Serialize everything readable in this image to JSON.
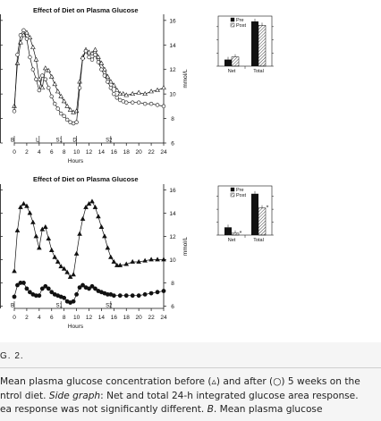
{
  "chart_data": [
    {
      "panel": "A",
      "type": "line",
      "title": "Effect of Diet on Plasma Glucose",
      "xlabel": "Hours",
      "ylabel": "mmol/L",
      "xticks": [
        0,
        2,
        4,
        6,
        8,
        10,
        12,
        14,
        16,
        18,
        20,
        22,
        24
      ],
      "yticks": [
        6,
        8,
        10,
        12,
        14,
        16
      ],
      "xlim": [
        0,
        24
      ],
      "ylim": [
        6,
        16.5
      ],
      "markers": [
        "B",
        "L",
        "S1",
        "D",
        "S2"
      ],
      "series": [
        {
          "marker": "triangle",
          "points": [
            [
              0,
              9
            ],
            [
              0.5,
              12.5
            ],
            [
              1,
              14.2
            ],
            [
              1.5,
              14.8
            ],
            [
              2,
              15
            ],
            [
              2.5,
              14.6
            ],
            [
              3,
              13.8
            ],
            [
              3.5,
              12.8
            ],
            [
              4,
              11.2
            ],
            [
              4.5,
              10.5
            ],
            [
              5,
              12.1
            ],
            [
              5.5,
              11.9
            ],
            [
              6,
              11.4
            ],
            [
              6.5,
              10.8
            ],
            [
              7,
              10.2
            ],
            [
              7.5,
              9.8
            ],
            [
              8,
              9.4
            ],
            [
              8.5,
              9.0
            ],
            [
              9,
              8.7
            ],
            [
              9.5,
              8.5
            ],
            [
              10,
              8.6
            ],
            [
              10.5,
              11.0
            ],
            [
              11,
              13.0
            ],
            [
              11.5,
              13.6
            ],
            [
              12,
              13.4
            ],
            [
              12.5,
              13.3
            ],
            [
              13,
              13.6
            ],
            [
              13.5,
              13.0
            ],
            [
              14,
              12.5
            ],
            [
              14.5,
              12.0
            ],
            [
              15,
              11.4
            ],
            [
              15.5,
              11.0
            ],
            [
              16,
              10.7
            ],
            [
              16.5,
              10.3
            ],
            [
              17,
              10.0
            ],
            [
              17.5,
              10.0
            ],
            [
              18,
              9.9
            ],
            [
              19,
              10.0
            ],
            [
              20,
              10.1
            ],
            [
              21,
              10.0
            ],
            [
              22,
              10.2
            ],
            [
              23,
              10.3
            ],
            [
              24,
              10.5
            ]
          ]
        },
        {
          "marker": "circle",
          "points": [
            [
              0,
              8.6
            ],
            [
              0.5,
              13.2
            ],
            [
              1,
              14.8
            ],
            [
              1.5,
              15.2
            ],
            [
              2,
              14.5
            ],
            [
              2.5,
              13.0
            ],
            [
              3,
              12.0
            ],
            [
              3.5,
              11.2
            ],
            [
              4,
              10.3
            ],
            [
              4.5,
              11.5
            ],
            [
              5,
              11.2
            ],
            [
              5.5,
              10.5
            ],
            [
              6,
              9.8
            ],
            [
              6.5,
              9.2
            ],
            [
              7,
              8.8
            ],
            [
              7.5,
              8.4
            ],
            [
              8,
              8.2
            ],
            [
              8.5,
              7.9
            ],
            [
              9,
              7.7
            ],
            [
              9.5,
              7.6
            ],
            [
              10,
              7.7
            ],
            [
              10.5,
              10.5
            ],
            [
              11,
              12.9
            ],
            [
              11.5,
              13.5
            ],
            [
              12,
              13.0
            ],
            [
              12.5,
              12.8
            ],
            [
              13,
              13.2
            ],
            [
              13.5,
              12.6
            ],
            [
              14,
              12.0
            ],
            [
              14.5,
              11.5
            ],
            [
              15,
              11.0
            ],
            [
              15.5,
              10.5
            ],
            [
              16,
              10.0
            ],
            [
              16.5,
              9.7
            ],
            [
              17,
              9.5
            ],
            [
              17.5,
              9.4
            ],
            [
              18,
              9.3
            ],
            [
              19,
              9.3
            ],
            [
              20,
              9.3
            ],
            [
              21,
              9.2
            ],
            [
              22,
              9.2
            ],
            [
              23,
              9.1
            ],
            [
              24,
              9.0
            ]
          ]
        }
      ],
      "inset": {
        "type": "bar",
        "categories": [
          "Net",
          "Total"
        ],
        "legend": [
          "Pre",
          "Post"
        ],
        "values": {
          "pre": [
            0.5,
            3.4
          ],
          "post": [
            0.7,
            3.1
          ]
        }
      }
    },
    {
      "panel": "B",
      "type": "line",
      "title": "Effect of Diet on Plasma Glucose",
      "xlabel": "Hours",
      "ylabel": "mmol/L",
      "xticks": [
        0,
        2,
        4,
        6,
        8,
        10,
        12,
        14,
        16,
        18,
        20,
        22,
        24
      ],
      "yticks": [
        6,
        8,
        10,
        12,
        14,
        16
      ],
      "xlim": [
        0,
        24
      ],
      "ylim": [
        5.8,
        16.5
      ],
      "markers": [
        "B",
        "S1",
        "S2"
      ],
      "series": [
        {
          "marker": "triangle-filled",
          "points": [
            [
              0,
              9
            ],
            [
              0.5,
              12.5
            ],
            [
              1,
              14.5
            ],
            [
              1.5,
              14.8
            ],
            [
              2,
              14.6
            ],
            [
              2.5,
              14.0
            ],
            [
              3,
              13.2
            ],
            [
              3.5,
              12.0
            ],
            [
              4,
              11.0
            ],
            [
              4.5,
              12.6
            ],
            [
              5,
              12.8
            ],
            [
              5.5,
              11.8
            ],
            [
              6,
              10.8
            ],
            [
              6.5,
              10.2
            ],
            [
              7,
              9.8
            ],
            [
              7.5,
              9.4
            ],
            [
              8,
              9.2
            ],
            [
              8.5,
              8.9
            ],
            [
              9,
              8.5
            ],
            [
              9.5,
              8.7
            ],
            [
              10,
              10.5
            ],
            [
              10.5,
              12.2
            ],
            [
              11,
              13.5
            ],
            [
              11.5,
              14.5
            ],
            [
              12,
              14.8
            ],
            [
              12.5,
              15.0
            ],
            [
              13,
              14.5
            ],
            [
              13.5,
              13.7
            ],
            [
              14,
              12.8
            ],
            [
              14.5,
              12.0
            ],
            [
              15,
              11.0
            ],
            [
              15.5,
              10.2
            ],
            [
              16,
              9.8
            ],
            [
              16.5,
              9.5
            ],
            [
              17,
              9.5
            ],
            [
              18,
              9.6
            ],
            [
              19,
              9.8
            ],
            [
              20,
              9.8
            ],
            [
              21,
              9.9
            ],
            [
              22,
              10.0
            ],
            [
              23,
              10.0
            ],
            [
              24,
              10.0
            ]
          ]
        },
        {
          "marker": "circle-filled",
          "points": [
            [
              0,
              6.8
            ],
            [
              0.5,
              7.8
            ],
            [
              1,
              8.0
            ],
            [
              1.5,
              8.0
            ],
            [
              2,
              7.5
            ],
            [
              2.5,
              7.2
            ],
            [
              3,
              7.0
            ],
            [
              3.5,
              6.9
            ],
            [
              4,
              6.9
            ],
            [
              4.5,
              7.5
            ],
            [
              5,
              7.7
            ],
            [
              5.5,
              7.5
            ],
            [
              6,
              7.2
            ],
            [
              6.5,
              7.0
            ],
            [
              7,
              6.9
            ],
            [
              7.5,
              6.8
            ],
            [
              8,
              6.7
            ],
            [
              8.5,
              6.4
            ],
            [
              9,
              6.3
            ],
            [
              9.5,
              6.4
            ],
            [
              10,
              7.0
            ],
            [
              10.5,
              7.6
            ],
            [
              11,
              7.8
            ],
            [
              11.5,
              7.6
            ],
            [
              12,
              7.5
            ],
            [
              12.5,
              7.7
            ],
            [
              13,
              7.5
            ],
            [
              13.5,
              7.3
            ],
            [
              14,
              7.2
            ],
            [
              14.5,
              7.1
            ],
            [
              15,
              7.0
            ],
            [
              15.5,
              7.0
            ],
            [
              16,
              6.9
            ],
            [
              17,
              6.9
            ],
            [
              18,
              6.9
            ],
            [
              19,
              6.9
            ],
            [
              20,
              6.9
            ],
            [
              21,
              7.0
            ],
            [
              22,
              7.1
            ],
            [
              23,
              7.2
            ],
            [
              24,
              7.3
            ]
          ]
        }
      ],
      "inset": {
        "type": "bar",
        "categories": [
          "Net",
          "Total"
        ],
        "legend": [
          "Pre",
          "Post"
        ],
        "values": {
          "pre": [
            0.6,
            3.2
          ],
          "post": [
            0.15,
            2.1
          ]
        },
        "annotations": [
          "*",
          "*"
        ]
      }
    }
  ],
  "caption": {
    "fig_label": "G. 2.",
    "lines": [
      [
        {
          "t": "Mean plasma glucose concentration before (▵) and after (○) 5 weeks on the",
          "i": false
        }
      ],
      [
        {
          "t": "ntrol diet. ",
          "i": false
        },
        {
          "t": "Side graph",
          "i": true
        },
        {
          "t": ": Net and total 24-h integrated glucose area response.",
          "i": false
        }
      ],
      [
        {
          "t": "ea response was not significantly different. ",
          "i": false
        },
        {
          "t": "B",
          "i": true
        },
        {
          "t": ". Mean plasma glucose",
          "i": false
        }
      ]
    ]
  }
}
